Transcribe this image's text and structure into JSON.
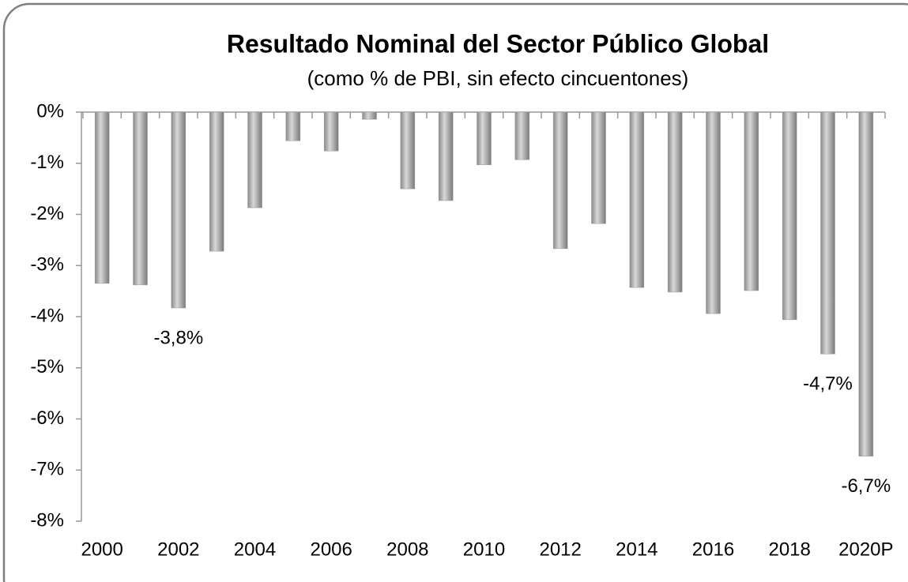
{
  "chart_data": {
    "type": "bar",
    "title": "Resultado Nominal del Sector Público Global",
    "subtitle": "(como % de PBI, sin efecto cincuentones)",
    "categories": [
      "2000",
      null,
      "2002",
      null,
      "2004",
      null,
      "2006",
      null,
      "2008",
      null,
      "2010",
      null,
      "2012",
      null,
      "2014",
      null,
      "2016",
      null,
      "2018",
      null,
      "2020P"
    ],
    "values": [
      -3.35,
      -3.38,
      -3.83,
      -2.72,
      -1.87,
      -0.56,
      -0.76,
      -0.14,
      -1.5,
      -1.73,
      -1.03,
      -0.93,
      -2.67,
      -2.18,
      -3.43,
      -3.52,
      -3.94,
      -3.49,
      -4.06,
      -4.73,
      -6.73
    ],
    "value_labels": [
      null,
      null,
      "-3,8%",
      null,
      null,
      null,
      null,
      null,
      null,
      null,
      null,
      null,
      null,
      null,
      null,
      null,
      null,
      null,
      null,
      "-4,7%",
      "-6,7%"
    ],
    "color": "#9a9a9a",
    "ylim": [
      -8,
      0
    ],
    "yticks": [
      {
        "value": 0,
        "label": "0%"
      },
      {
        "value": -1,
        "label": "-1%"
      },
      {
        "value": -2,
        "label": "-2%"
      },
      {
        "value": -3,
        "label": "-3%"
      },
      {
        "value": -4,
        "label": "-4%"
      },
      {
        "value": -5,
        "label": "-5%"
      },
      {
        "value": -6,
        "label": "-6%"
      },
      {
        "value": -7,
        "label": "-7%"
      },
      {
        "value": -8,
        "label": "-8%"
      }
    ],
    "grid": false
  }
}
